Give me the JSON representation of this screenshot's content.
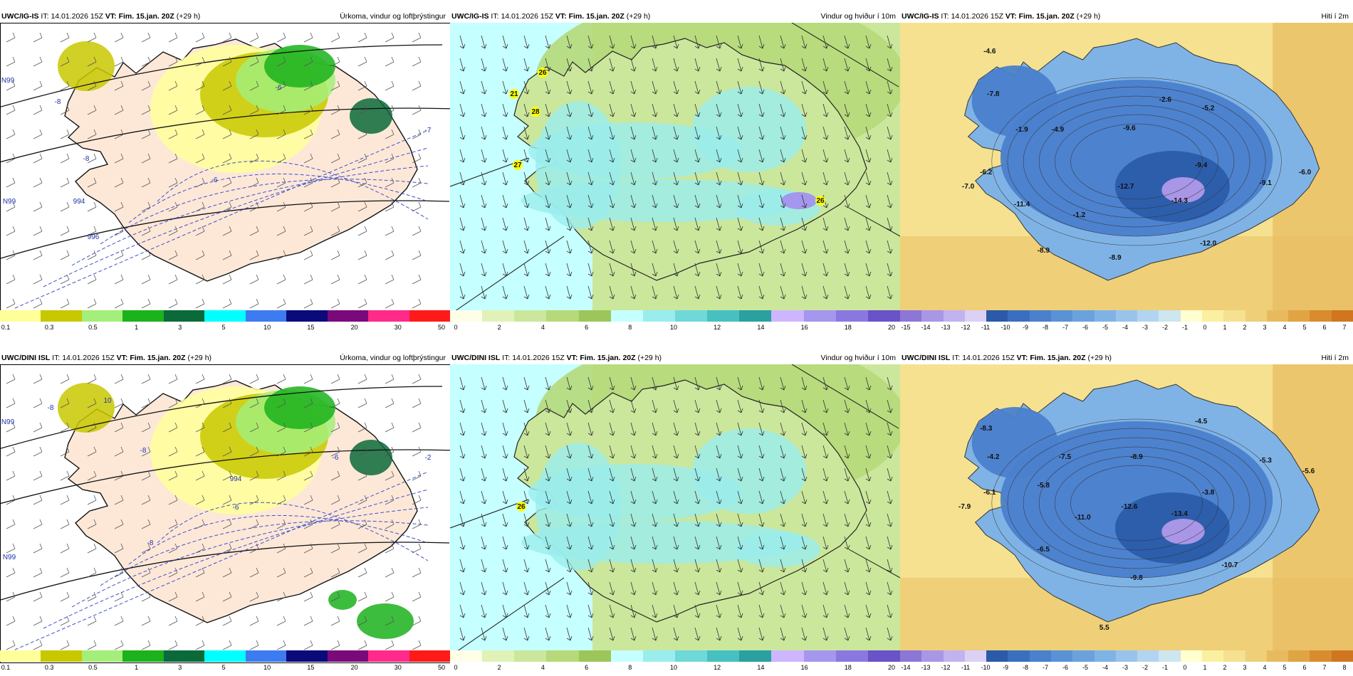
{
  "colors": {
    "precip": [
      "#ffff9a",
      "#c8c800",
      "#a3ef7a",
      "#1bb21b",
      "#0a6a3a",
      "#00ffff",
      "#3d7bf0",
      "#0a0a7a",
      "#7a0a7a",
      "#ff2a8a",
      "#ff1a1a"
    ],
    "wind": [
      "#ffffe8",
      "#e0f2b8",
      "#cbe79c",
      "#b6d97a",
      "#9dc65a",
      "#c6ffff",
      "#9aeded",
      "#6fd8d8",
      "#46c0c0",
      "#2aa0a0",
      "#cdb6ff",
      "#a596ee",
      "#8a78e0",
      "#6a52c8"
    ],
    "temp": [
      "#8e75d8",
      "#a996e6",
      "#c2b2ef",
      "#dcd0f5",
      "#2a5aa8",
      "#3a6fc0",
      "#4a80cc",
      "#5a92d6",
      "#6aa2de",
      "#80b3e5",
      "#98c4ec",
      "#b2d4f0",
      "#cde6ef",
      "#ffffd0",
      "#fbf0a0",
      "#f5e190",
      "#efcf78",
      "#e8ba5e",
      "#e0a444",
      "#d88c2e",
      "#d07620"
    ],
    "land": "#fde8d8",
    "sea": "#ffffff"
  },
  "panels": [
    {
      "model": "UWC/IG-IS",
      "it_label": "IT:",
      "it_value": "14.01.2026 15Z",
      "vt_label": "VT:",
      "vt_value": "Fim. 15.jan. 20Z",
      "lead": "(+29 h)",
      "title": "Úrkoma, vindur og loftþrýstingur",
      "ticks": [
        "0.1",
        "0.3",
        "0.5",
        "1",
        "3",
        "5",
        "10",
        "15",
        "20",
        "30",
        "50"
      ],
      "labels": [
        "-8",
        "-8",
        "-6",
        "-6",
        "-7",
        "994",
        "996",
        "N99",
        "N99"
      ]
    },
    {
      "model": "UWC/IG-IS",
      "it_label": "IT:",
      "it_value": "14.01.2026 15Z",
      "vt_label": "VT:",
      "vt_value": "Fim. 15.jan. 20Z",
      "lead": "(+29 h)",
      "title": "Vindur og hviður í 10m",
      "ticks": [
        "0",
        "2",
        "4",
        "6",
        "8",
        "10",
        "12",
        "14",
        "16",
        "18",
        "20"
      ],
      "labels": [
        "26",
        "21",
        "28",
        "27",
        "26"
      ]
    },
    {
      "model": "UWC/IG-IS",
      "it_label": "IT:",
      "it_value": "14.01.2026 15Z",
      "vt_label": "VT:",
      "vt_value": "Fim. 15.jan. 20Z",
      "lead": "(+29 h)",
      "title": "Hiti í 2m",
      "ticks": [
        "-15",
        "-14",
        "-13",
        "-12",
        "-11",
        "-10",
        "-9",
        "-8",
        "-7",
        "-6",
        "-5",
        "-4",
        "-3",
        "-2",
        "-1",
        "0",
        "1",
        "2",
        "3",
        "4",
        "5",
        "6",
        "7"
      ],
      "labels": [
        "-4.6",
        "-7.8",
        "-2.6",
        "-5.2",
        "-1.9",
        "-4.9",
        "-9.6",
        "-9.4",
        "-6.2",
        "-7.0",
        "-12.7",
        "-14.3",
        "-9.1",
        "-6.0",
        "-11.4",
        "-1.2",
        "-12.0",
        "-8.9",
        "-8.9"
      ]
    },
    {
      "model": "UWC/DINI ISL",
      "it_label": "IT:",
      "it_value": "14.01.2026 15Z",
      "vt_label": "VT:",
      "vt_value": "Fim. 15.jan. 20Z",
      "lead": "(+29 h)",
      "title": "Úrkoma, vindur og loftþrýstingur",
      "ticks": [
        "0.1",
        "0.3",
        "0.5",
        "1",
        "3",
        "5",
        "10",
        "15",
        "20",
        "30",
        "50"
      ],
      "labels": [
        "-8",
        "10",
        "-8",
        "-6",
        "-6",
        "-2",
        "-8",
        "994",
        "N99",
        "N99"
      ]
    },
    {
      "model": "UWC/DINI ISL",
      "it_label": "IT:",
      "it_value": "14.01.2026 15Z",
      "vt_label": "VT:",
      "vt_value": "Fim. 15.jan. 20Z",
      "lead": "(+29 h)",
      "title": "Vindur og hviður í 10m",
      "ticks": [
        "0",
        "2",
        "4",
        "6",
        "8",
        "10",
        "12",
        "14",
        "16",
        "18",
        "20"
      ],
      "labels": [
        "26"
      ]
    },
    {
      "model": "UWC/DINI ISL",
      "it_label": "IT:",
      "it_value": "14.01.2026 15Z",
      "vt_label": "VT:",
      "vt_value": "Fim. 15.jan. 20Z",
      "lead": "(+29 h)",
      "title": "Hiti í 2m",
      "ticks": [
        "-14",
        "-13",
        "-12",
        "-11",
        "-10",
        "-9",
        "-8",
        "-7",
        "-6",
        "-5",
        "-4",
        "-3",
        "-2",
        "-1",
        "0",
        "1",
        "2",
        "3",
        "4",
        "5",
        "6",
        "7",
        "8"
      ],
      "labels": [
        "-8.3",
        "-4.5",
        "-4.2",
        "-7.5",
        "-8.9",
        "-5.3",
        "-5.6",
        "-5.8",
        "-6.1",
        "-7.9",
        "-11.0",
        "-12.6",
        "-3.8",
        "-13.4",
        "-6.5",
        "-10.7",
        "-9.8",
        "5.5"
      ]
    }
  ]
}
